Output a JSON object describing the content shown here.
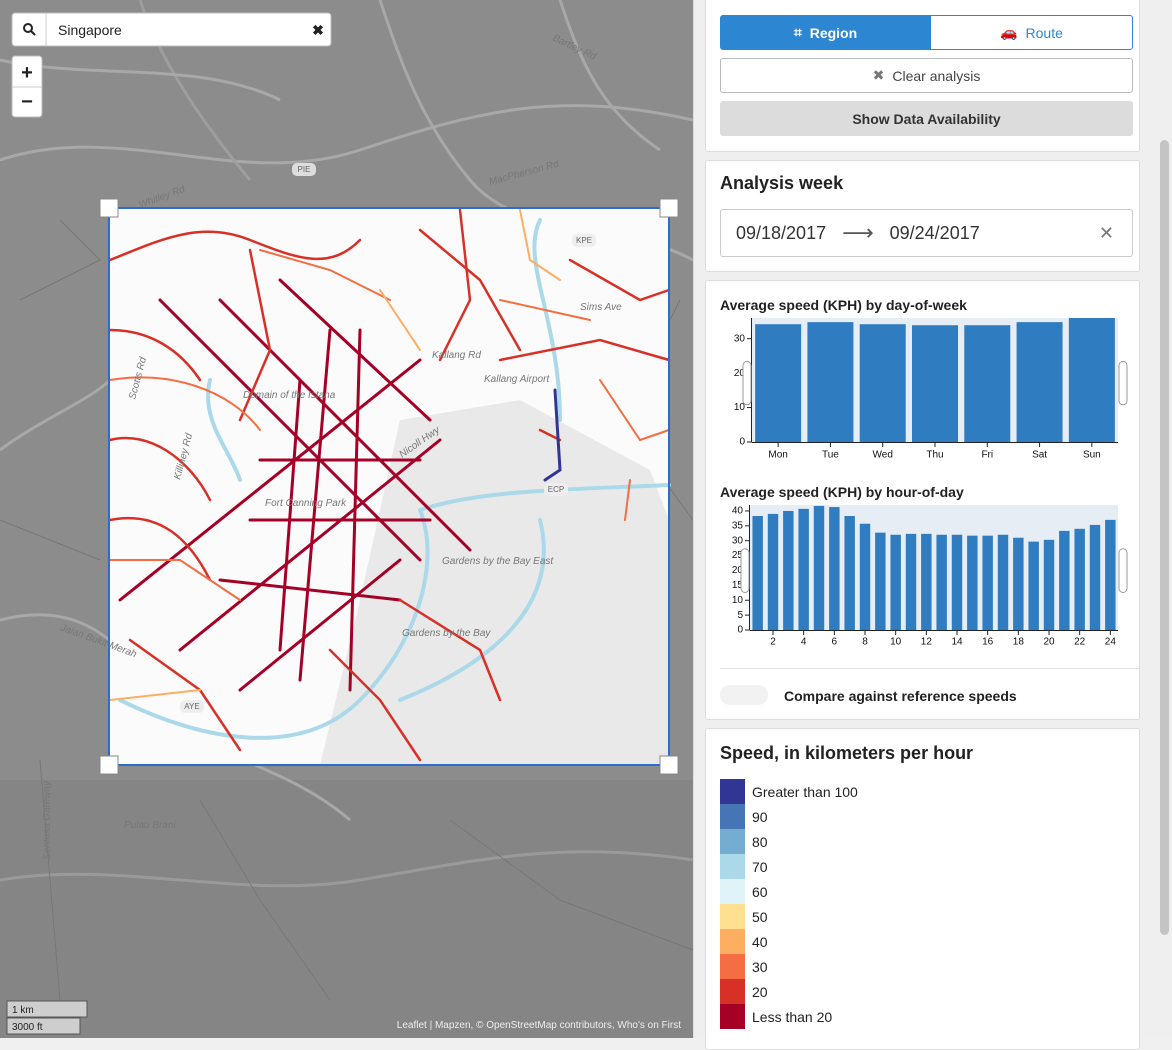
{
  "search": {
    "query": "Singapore"
  },
  "zoom": {
    "in": "+",
    "out": "−"
  },
  "map": {
    "labels": [
      "Domain of the Istana",
      "Fort Canning Park",
      "Gardens by the Bay East",
      "Gardens by the Bay",
      "Kallang Airport",
      "Kallang Rd",
      "Nicoll Hwy",
      "Sims Ave",
      "Scotts Rd",
      "Killiney Rd",
      "Pulau Brani",
      "Sentosa Gateway",
      "MacPherson Rd",
      "Whitley Rd",
      "Bartley Rd",
      "Jalan Bukit Merah",
      "PIE",
      "KPE",
      "ECP",
      "AYE"
    ],
    "scale": [
      "1 km",
      "3000 ft"
    ],
    "attribution": "Leaflet | Mapzen, © OpenStreetMap contributors, Who's on First"
  },
  "controls": {
    "region": "Region",
    "route": "Route",
    "clear": "Clear analysis",
    "availability": "Show Data Availability"
  },
  "week": {
    "title": "Analysis week",
    "start": "09/18/2017",
    "end": "09/24/2017"
  },
  "chart_data": [
    {
      "type": "bar",
      "title": "Average speed (KPH) by day-of-week",
      "color": "#2f7cc0",
      "categories": [
        "Mon",
        "Tue",
        "Wed",
        "Thu",
        "Fri",
        "Sat",
        "Sun"
      ],
      "values": [
        34.2,
        34.8,
        34.2,
        33.9,
        33.9,
        34.8,
        36
      ],
      "ylim": [
        0,
        36
      ],
      "yticks": [
        0,
        10,
        20,
        30
      ]
    },
    {
      "type": "bar",
      "title": "Average speed (KPH) by hour-of-day",
      "color": "#2f7cc0",
      "x": [
        1,
        2,
        3,
        4,
        5,
        6,
        7,
        8,
        9,
        10,
        11,
        12,
        13,
        14,
        15,
        16,
        17,
        18,
        19,
        20,
        21,
        22,
        23,
        24
      ],
      "values": [
        38.3,
        39,
        40,
        40.7,
        41.7,
        41.3,
        38.3,
        35.7,
        32.7,
        32,
        32.3,
        32.3,
        32,
        32,
        31.7,
        31.7,
        32,
        31,
        29.7,
        30.3,
        33.3,
        34,
        35.3,
        37
      ],
      "xlim": [
        0.5,
        24.5
      ],
      "xticks": [
        2,
        4,
        6,
        8,
        10,
        12,
        14,
        16,
        18,
        20,
        22,
        24
      ],
      "ylim": [
        0,
        42
      ],
      "yticks": [
        0,
        5,
        10,
        15,
        20,
        25,
        30,
        35,
        40
      ]
    }
  ],
  "compare": "Compare against reference speeds",
  "legend": {
    "title": "Speed, in kilometers per hour",
    "items": [
      {
        "label": "Greater than 100",
        "color": "#313695"
      },
      {
        "label": "90",
        "color": "#4575b4"
      },
      {
        "label": "80",
        "color": "#74add1"
      },
      {
        "label": "70",
        "color": "#abd9e9"
      },
      {
        "label": "60",
        "color": "#e0f3f8"
      },
      {
        "label": "50",
        "color": "#fee090"
      },
      {
        "label": "40",
        "color": "#fdae61"
      },
      {
        "label": "30",
        "color": "#f46d43"
      },
      {
        "label": "20",
        "color": "#d73027"
      },
      {
        "label": "Less than 20",
        "color": "#a50026"
      }
    ]
  }
}
